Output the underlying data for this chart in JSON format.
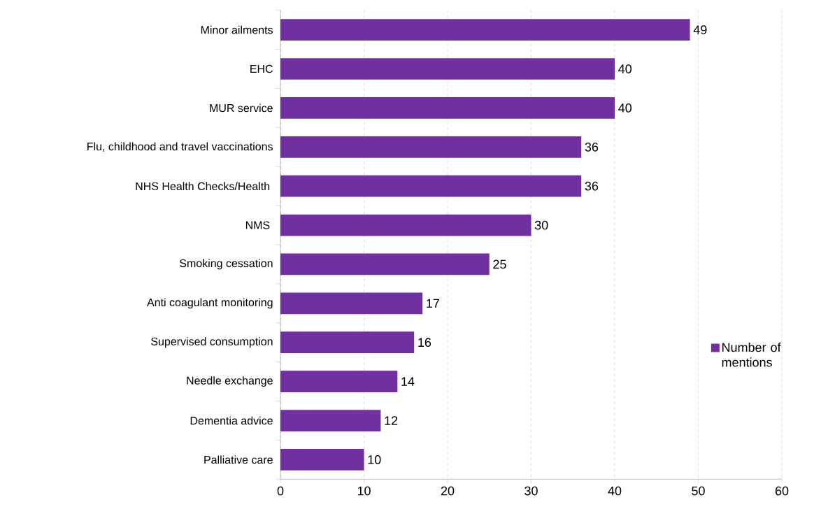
{
  "chart_data": {
    "type": "bar",
    "orientation": "horizontal",
    "categories": [
      "Minor ailments",
      "EHC",
      "MUR service",
      "Flu, childhood and travel vaccinations",
      "NHS Health Checks/Health ",
      "NMS ",
      "Smoking cessation",
      "Anti coagulant monitoring",
      "Supervised consumption",
      "Needle exchange",
      "Dementia advice",
      "Palliative care"
    ],
    "series": [
      {
        "name": "Number of mentions",
        "color": "#7030a0",
        "values": [
          49,
          40,
          40,
          36,
          36,
          30,
          25,
          17,
          16,
          14,
          12,
          10
        ]
      }
    ],
    "xlim": [
      0,
      60
    ],
    "xticks": [
      0,
      10,
      20,
      30,
      40,
      50,
      60
    ],
    "grid": "x",
    "legend": "right",
    "data_labels": true
  }
}
